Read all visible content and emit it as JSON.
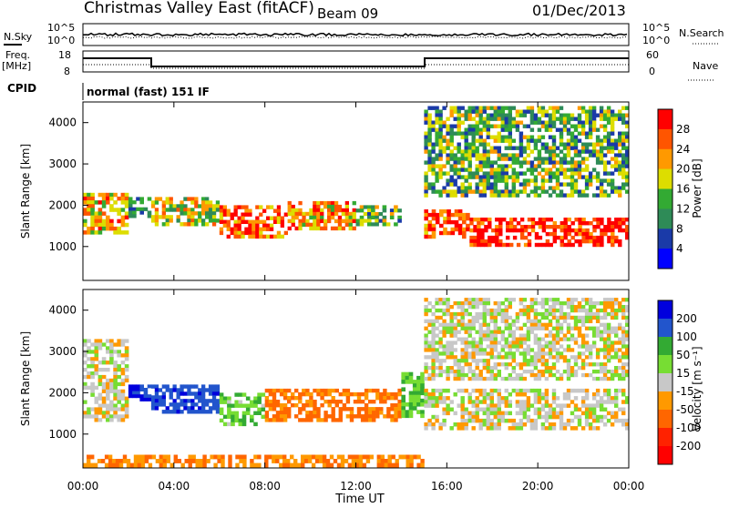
{
  "header": {
    "station": "Christmas Valley East (fitACF)",
    "beam": "Beam 09",
    "date": "01/Dec/2013"
  },
  "noise_panel": {
    "left_label": "N.Sky",
    "right_label": "N.Search",
    "left_ticks": [
      "10^5",
      "10^0"
    ],
    "right_ticks": [
      "10^5",
      "10^0"
    ]
  },
  "freq_panel": {
    "left_label_1": "Freq.",
    "left_label_2": "[MHz]",
    "left_ticks": [
      "18",
      "8"
    ],
    "right_ticks": [
      "60",
      "0"
    ],
    "right_label": "Nave"
  },
  "cpid": {
    "label": "CPID",
    "value": "normal (fast) 151 IF"
  },
  "chart_data": [
    {
      "type": "heatmap",
      "quantity": "Power",
      "ylabel": "Slant Range [km]",
      "ylim": [
        180,
        4500
      ],
      "yticks": [
        "1000",
        "2000",
        "3000",
        "4000"
      ],
      "colorbar_label": "Power [dB]",
      "colorbar_ticks": [
        "28",
        "24",
        "20",
        "16",
        "12",
        "8",
        "4"
      ],
      "colorbar_colors": [
        "#ff0000",
        "#ff5500",
        "#ff9900",
        "#dddd00",
        "#33aa33",
        "#2e8b57",
        "#1a3aa8",
        "#0000ff"
      ],
      "echo_regions": [
        {
          "start": "00:00",
          "end": "02:00",
          "range_km": [
            1300,
            2300
          ],
          "power_db": 20
        },
        {
          "start": "02:00",
          "end": "03:00",
          "range_km": [
            1700,
            2200
          ],
          "power_db": 10
        },
        {
          "start": "03:00",
          "end": "06:00",
          "range_km": [
            1500,
            2200
          ],
          "power_db": 18
        },
        {
          "start": "06:00",
          "end": "09:00",
          "range_km": [
            1200,
            2000
          ],
          "power_db": 24
        },
        {
          "start": "09:00",
          "end": "12:00",
          "range_km": [
            1400,
            2100
          ],
          "power_db": 22
        },
        {
          "start": "12:00",
          "end": "14:00",
          "range_km": [
            1500,
            2000
          ],
          "power_db": 14
        },
        {
          "start": "15:00",
          "end": "17:00",
          "range_km": [
            1200,
            1900
          ],
          "power_db": 26
        },
        {
          "start": "17:00",
          "end": "24:00",
          "range_km": [
            1000,
            1700
          ],
          "power_db": 28
        },
        {
          "start": "15:00",
          "end": "24:00",
          "range_km": [
            2200,
            4400
          ],
          "power_db": 14
        }
      ]
    },
    {
      "type": "heatmap",
      "quantity": "Velocity",
      "ylabel": "Slant Range [km]",
      "xlabel": "Time UT",
      "ylim": [
        180,
        4500
      ],
      "xlim": [
        "00:00",
        "24:00"
      ],
      "yticks": [
        "1000",
        "2000",
        "3000",
        "4000"
      ],
      "xticks": [
        "00:00",
        "04:00",
        "08:00",
        "12:00",
        "16:00",
        "20:00",
        "00:00"
      ],
      "colorbar_label": "Velocity [m s⁻¹]",
      "colorbar_ticks": [
        "200",
        "100",
        "50",
        "15",
        "-15",
        "-50",
        "-100",
        "-200"
      ],
      "colorbar_colors": [
        "#0000dd",
        "#2255cc",
        "#33aa33",
        "#77dd33",
        "#c8c8c8",
        "#ff9900",
        "#ff6600",
        "#ff2200",
        "#ff0000"
      ],
      "echo_regions": [
        {
          "start": "00:00",
          "end": "02:00",
          "range_km": [
            1300,
            3300
          ],
          "velocity_ms": 0
        },
        {
          "start": "02:00",
          "end": "03:00",
          "range_km": [
            1800,
            2200
          ],
          "velocity_ms": 200
        },
        {
          "start": "03:00",
          "end": "06:00",
          "range_km": [
            1500,
            2200
          ],
          "velocity_ms": 180
        },
        {
          "start": "06:00",
          "end": "08:00",
          "range_km": [
            1200,
            2000
          ],
          "velocity_ms": 40
        },
        {
          "start": "08:00",
          "end": "14:00",
          "range_km": [
            1300,
            2100
          ],
          "velocity_ms": -60
        },
        {
          "start": "14:00",
          "end": "15:00",
          "range_km": [
            1400,
            2500
          ],
          "velocity_ms": 40
        },
        {
          "start": "15:00",
          "end": "24:00",
          "range_km": [
            1100,
            2100
          ],
          "velocity_ms": 0
        },
        {
          "start": "15:00",
          "end": "24:00",
          "range_km": [
            2300,
            4300
          ],
          "velocity_ms": 0
        },
        {
          "start": "00:00",
          "end": "15:00",
          "range_km": [
            200,
            500
          ],
          "velocity_ms": -50
        }
      ]
    }
  ]
}
